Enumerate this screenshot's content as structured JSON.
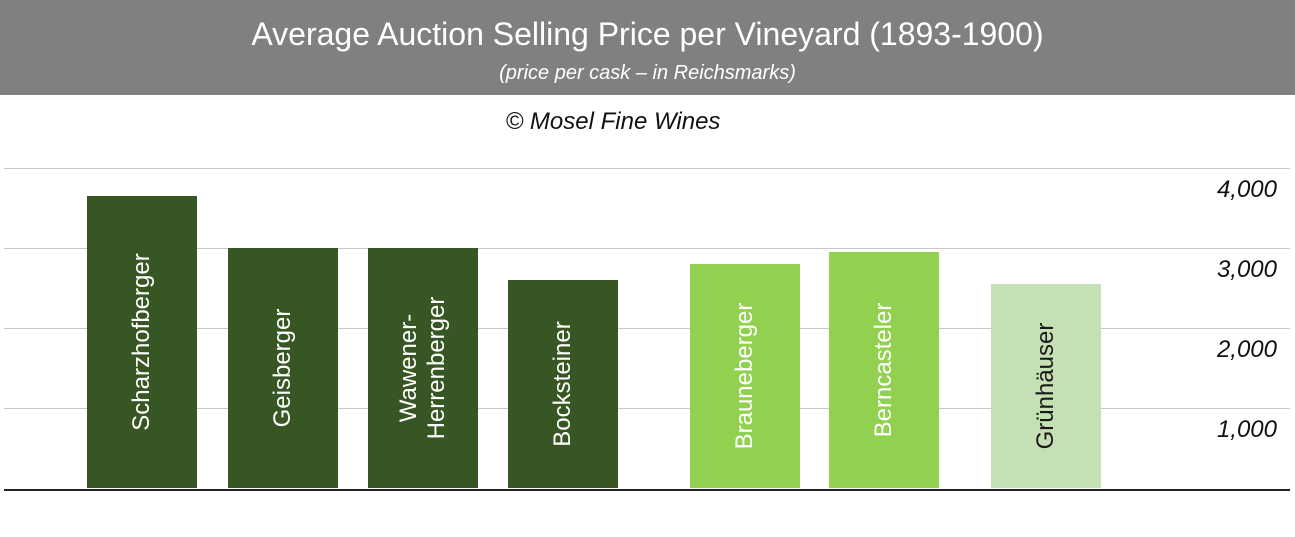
{
  "chart_data": {
    "type": "bar",
    "title": "Average Auction Selling Price per Vineyard (1893-1900)",
    "subtitle": "(price per cask – in Reichsmarks)",
    "annotation": "© Mosel Fine Wines",
    "categories": [
      "Scharzhofberger",
      "Geisberger",
      "Wawener-Herrenberger",
      "Bocksteiner",
      "Brauneberger",
      "Berncasteler",
      "Grünhäuser"
    ],
    "values": [
      3650,
      3000,
      3000,
      2600,
      2800,
      2950,
      2550
    ],
    "colors": [
      "#375623",
      "#375623",
      "#375623",
      "#375623",
      "#92d050",
      "#92d050",
      "#c5e0b4"
    ],
    "ylim": [
      0,
      4000
    ],
    "yticks": [
      {
        "value": 1000,
        "label": "1,000"
      },
      {
        "value": 2000,
        "label": "2,000"
      },
      {
        "value": 3000,
        "label": "3,000"
      },
      {
        "value": 4000,
        "label": "4,000"
      }
    ],
    "grid": true
  }
}
